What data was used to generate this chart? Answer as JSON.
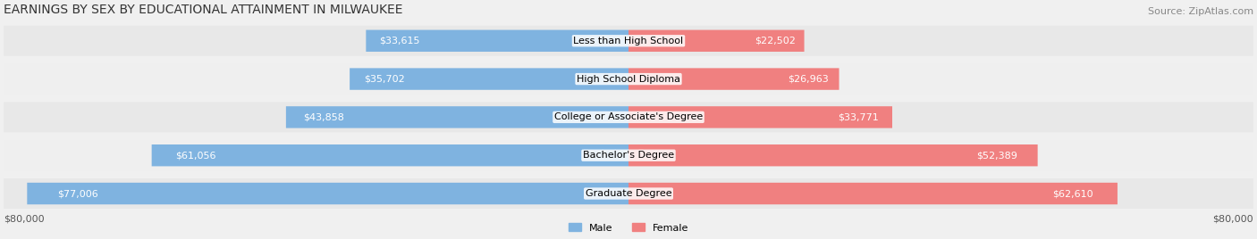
{
  "title": "EARNINGS BY SEX BY EDUCATIONAL ATTAINMENT IN MILWAUKEE",
  "source": "Source: ZipAtlas.com",
  "categories": [
    "Less than High School",
    "High School Diploma",
    "College or Associate's Degree",
    "Bachelor's Degree",
    "Graduate Degree"
  ],
  "male_values": [
    33615,
    35702,
    43858,
    61056,
    77006
  ],
  "female_values": [
    22502,
    26963,
    33771,
    52389,
    62610
  ],
  "male_color": "#7fb3e0",
  "female_color": "#f08080",
  "label_color_inside": "#ffffff",
  "label_color_outside": "#555555",
  "background_color": "#f0f0f0",
  "row_bg_color": "#e8e8e8",
  "max_value": 80000,
  "xlabel_left": "$80,000",
  "xlabel_right": "$80,000",
  "title_fontsize": 10,
  "source_fontsize": 8,
  "bar_label_fontsize": 8,
  "category_fontsize": 8,
  "axis_fontsize": 8
}
